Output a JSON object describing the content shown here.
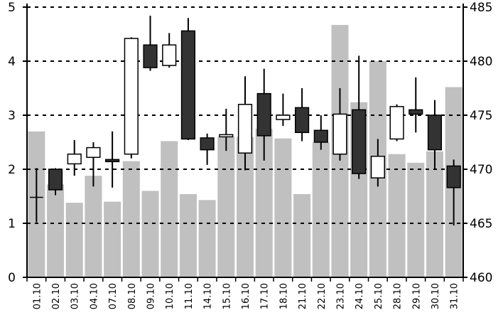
{
  "chart_data": {
    "type": "candlestick",
    "title": "",
    "categories": [
      "01.10",
      "02.10",
      "03.10",
      "04.10",
      "07.10",
      "08.10",
      "09.10",
      "10.10",
      "11.10",
      "14.10",
      "15.10",
      "16.10",
      "17.10",
      "18.10",
      "21.10",
      "22.10",
      "23.10",
      "24.10",
      "25.10",
      "28.10",
      "29.10",
      "30.10",
      "31.10"
    ],
    "left_axis": {
      "ylim": [
        0,
        5
      ],
      "ticks": [
        "0",
        "1",
        "2",
        "3",
        "4",
        "5"
      ]
    },
    "right_axis": {
      "ylim": [
        460,
        485
      ],
      "ticks": [
        "460",
        "465",
        "470",
        "475",
        "480",
        "485"
      ]
    },
    "grid": "dashed horizontal at left-axis ticks",
    "volume": [
      2.7,
      1.72,
      1.38,
      1.88,
      1.4,
      2.15,
      1.6,
      2.52,
      1.54,
      1.43,
      2.6,
      2.6,
      2.75,
      2.57,
      1.54,
      2.5,
      4.67,
      3.24,
      4.0,
      2.28,
      2.12,
      2.33,
      3.52
    ],
    "price": [
      {
        "open": 467.4,
        "close": 467.4,
        "high": 470.1,
        "low": 465.1
      },
      {
        "open": 470.0,
        "close": 468.1,
        "high": 470.1,
        "low": 467.6
      },
      {
        "open": 470.5,
        "close": 471.4,
        "high": 472.7,
        "low": 469.4
      },
      {
        "open": 471.1,
        "close": 472.0,
        "high": 472.5,
        "low": 468.4
      },
      {
        "open": 470.9,
        "close": 470.8,
        "high": 473.5,
        "low": 468.3
      },
      {
        "open": 471.4,
        "close": 482.1,
        "high": 482.2,
        "low": 471.0
      },
      {
        "open": 481.5,
        "close": 479.4,
        "high": 484.2,
        "low": 479.1
      },
      {
        "open": 479.6,
        "close": 481.5,
        "high": 482.6,
        "low": 479.4
      },
      {
        "open": 482.8,
        "close": 472.8,
        "high": 484.0,
        "low": 472.7
      },
      {
        "open": 472.9,
        "close": 471.8,
        "high": 473.3,
        "low": 470.4
      },
      {
        "open": 473.0,
        "close": 473.2,
        "high": 475.6,
        "low": 471.7
      },
      {
        "open": 471.5,
        "close": 476.0,
        "high": 478.6,
        "low": 469.9
      },
      {
        "open": 477.0,
        "close": 473.1,
        "high": 479.3,
        "low": 470.8
      },
      {
        "open": 474.6,
        "close": 475.0,
        "high": 477.0,
        "low": 474.0
      },
      {
        "open": 475.7,
        "close": 473.4,
        "high": 477.5,
        "low": 472.6
      },
      {
        "open": 473.6,
        "close": 472.5,
        "high": 475.0,
        "low": 471.8
      },
      {
        "open": 471.4,
        "close": 475.1,
        "high": 477.5,
        "low": 470.8
      },
      {
        "open": 475.5,
        "close": 469.6,
        "high": 480.5,
        "low": 469.1
      },
      {
        "open": 469.2,
        "close": 471.2,
        "high": 472.8,
        "low": 468.4
      },
      {
        "open": 472.8,
        "close": 475.8,
        "high": 476.0,
        "low": 472.6
      },
      {
        "open": 475.5,
        "close": 475.1,
        "high": 478.5,
        "low": 473.4
      },
      {
        "open": 475.0,
        "close": 471.8,
        "high": 476.4,
        "low": 470.0
      },
      {
        "open": 470.3,
        "close": 468.3,
        "high": 470.9,
        "low": 464.8
      }
    ],
    "colors": {
      "volume_bar": "#c0c0c0",
      "rising_body": "#ffffff",
      "falling_body": "#333333",
      "grid": "#000000"
    }
  }
}
